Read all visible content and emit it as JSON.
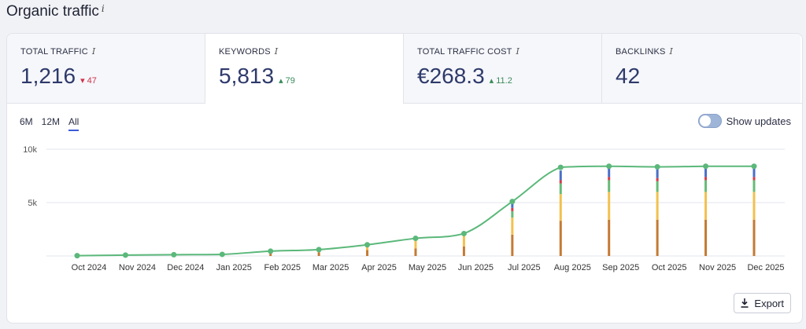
{
  "header": {
    "title": "Organic traffic",
    "info": "i"
  },
  "metrics": [
    {
      "label": "TOTAL TRAFFIC",
      "value": "1,216",
      "delta": "47",
      "direction": "down"
    },
    {
      "label": "KEYWORDS",
      "value": "5,813",
      "delta": "79",
      "direction": "up"
    },
    {
      "label": "TOTAL TRAFFIC COST",
      "value": "€268.3",
      "delta": "11.2",
      "direction": "up"
    },
    {
      "label": "BACKLINKS",
      "value": "42",
      "delta": "",
      "direction": "none"
    }
  ],
  "range_tabs": [
    "6M",
    "12M",
    "All"
  ],
  "selected_range": "All",
  "toggle": {
    "label": "Show updates",
    "on": false
  },
  "export_label": "Export",
  "colors": {
    "line": "#5bb87a",
    "accent": "#3a5bd9",
    "down": "#d0304a",
    "up": "#3a8a5c"
  },
  "chart_data": {
    "type": "line",
    "categories": [
      "Oct 2024",
      "Nov 2024",
      "Dec 2024",
      "Jan 2025",
      "Feb 2025",
      "Mar 2025",
      "Apr 2025",
      "May 2025",
      "Jun 2025",
      "Jul 2025",
      "Aug 2025",
      "Sep 2025",
      "Oct 2025",
      "Nov 2025",
      "Dec 2025"
    ],
    "y_ticks": [
      "10k",
      "5k"
    ],
    "ylim": [
      0,
      10000
    ],
    "series": [
      {
        "values": [
          30,
          80,
          120,
          150,
          450,
          600,
          1050,
          1650,
          2100,
          5100,
          8300,
          8400,
          8350,
          8400,
          8400
        ]
      }
    ],
    "segment_colors": [
      "#c47a33",
      "#f2c14e",
      "#66bb77",
      "#d63a4a",
      "#4a6fc7"
    ],
    "stacks": [
      [
        30,
        0,
        0,
        0,
        0
      ],
      [
        60,
        0,
        0,
        0,
        0
      ],
      [
        80,
        0,
        0,
        0,
        0
      ],
      [
        120,
        0,
        0,
        0,
        0
      ],
      [
        350,
        0,
        0,
        0,
        0
      ],
      [
        350,
        100,
        0,
        0,
        0
      ],
      [
        550,
        450,
        0,
        0,
        0
      ],
      [
        700,
        800,
        0,
        0,
        0
      ],
      [
        900,
        1000,
        100,
        0,
        0
      ],
      [
        2000,
        1600,
        600,
        300,
        400
      ],
      [
        3300,
        2500,
        1000,
        300,
        900
      ],
      [
        3400,
        2600,
        1100,
        300,
        900
      ],
      [
        3400,
        2600,
        1000,
        300,
        900
      ],
      [
        3400,
        2600,
        1100,
        300,
        900
      ],
      [
        3400,
        2600,
        1100,
        300,
        900
      ]
    ],
    "grid": true
  }
}
